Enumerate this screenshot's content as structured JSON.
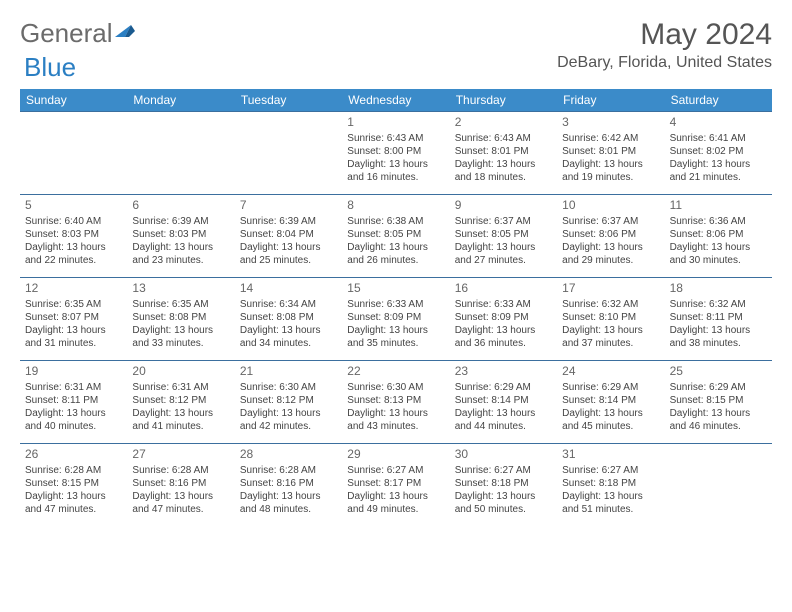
{
  "logo": {
    "part1": "General",
    "part2": "Blue"
  },
  "title": "May 2024",
  "location": "DeBary, Florida, United States",
  "header_bg": "#3b8bc9",
  "border_color": "#3b6f9e",
  "weekdays": [
    "Sunday",
    "Monday",
    "Tuesday",
    "Wednesday",
    "Thursday",
    "Friday",
    "Saturday"
  ],
  "weeks": [
    [
      {
        "n": "",
        "l1": "",
        "l2": "",
        "l3": "",
        "l4": ""
      },
      {
        "n": "",
        "l1": "",
        "l2": "",
        "l3": "",
        "l4": ""
      },
      {
        "n": "",
        "l1": "",
        "l2": "",
        "l3": "",
        "l4": ""
      },
      {
        "n": "1",
        "l1": "Sunrise: 6:43 AM",
        "l2": "Sunset: 8:00 PM",
        "l3": "Daylight: 13 hours",
        "l4": "and 16 minutes."
      },
      {
        "n": "2",
        "l1": "Sunrise: 6:43 AM",
        "l2": "Sunset: 8:01 PM",
        "l3": "Daylight: 13 hours",
        "l4": "and 18 minutes."
      },
      {
        "n": "3",
        "l1": "Sunrise: 6:42 AM",
        "l2": "Sunset: 8:01 PM",
        "l3": "Daylight: 13 hours",
        "l4": "and 19 minutes."
      },
      {
        "n": "4",
        "l1": "Sunrise: 6:41 AM",
        "l2": "Sunset: 8:02 PM",
        "l3": "Daylight: 13 hours",
        "l4": "and 21 minutes."
      }
    ],
    [
      {
        "n": "5",
        "l1": "Sunrise: 6:40 AM",
        "l2": "Sunset: 8:03 PM",
        "l3": "Daylight: 13 hours",
        "l4": "and 22 minutes."
      },
      {
        "n": "6",
        "l1": "Sunrise: 6:39 AM",
        "l2": "Sunset: 8:03 PM",
        "l3": "Daylight: 13 hours",
        "l4": "and 23 minutes."
      },
      {
        "n": "7",
        "l1": "Sunrise: 6:39 AM",
        "l2": "Sunset: 8:04 PM",
        "l3": "Daylight: 13 hours",
        "l4": "and 25 minutes."
      },
      {
        "n": "8",
        "l1": "Sunrise: 6:38 AM",
        "l2": "Sunset: 8:05 PM",
        "l3": "Daylight: 13 hours",
        "l4": "and 26 minutes."
      },
      {
        "n": "9",
        "l1": "Sunrise: 6:37 AM",
        "l2": "Sunset: 8:05 PM",
        "l3": "Daylight: 13 hours",
        "l4": "and 27 minutes."
      },
      {
        "n": "10",
        "l1": "Sunrise: 6:37 AM",
        "l2": "Sunset: 8:06 PM",
        "l3": "Daylight: 13 hours",
        "l4": "and 29 minutes."
      },
      {
        "n": "11",
        "l1": "Sunrise: 6:36 AM",
        "l2": "Sunset: 8:06 PM",
        "l3": "Daylight: 13 hours",
        "l4": "and 30 minutes."
      }
    ],
    [
      {
        "n": "12",
        "l1": "Sunrise: 6:35 AM",
        "l2": "Sunset: 8:07 PM",
        "l3": "Daylight: 13 hours",
        "l4": "and 31 minutes."
      },
      {
        "n": "13",
        "l1": "Sunrise: 6:35 AM",
        "l2": "Sunset: 8:08 PM",
        "l3": "Daylight: 13 hours",
        "l4": "and 33 minutes."
      },
      {
        "n": "14",
        "l1": "Sunrise: 6:34 AM",
        "l2": "Sunset: 8:08 PM",
        "l3": "Daylight: 13 hours",
        "l4": "and 34 minutes."
      },
      {
        "n": "15",
        "l1": "Sunrise: 6:33 AM",
        "l2": "Sunset: 8:09 PM",
        "l3": "Daylight: 13 hours",
        "l4": "and 35 minutes."
      },
      {
        "n": "16",
        "l1": "Sunrise: 6:33 AM",
        "l2": "Sunset: 8:09 PM",
        "l3": "Daylight: 13 hours",
        "l4": "and 36 minutes."
      },
      {
        "n": "17",
        "l1": "Sunrise: 6:32 AM",
        "l2": "Sunset: 8:10 PM",
        "l3": "Daylight: 13 hours",
        "l4": "and 37 minutes."
      },
      {
        "n": "18",
        "l1": "Sunrise: 6:32 AM",
        "l2": "Sunset: 8:11 PM",
        "l3": "Daylight: 13 hours",
        "l4": "and 38 minutes."
      }
    ],
    [
      {
        "n": "19",
        "l1": "Sunrise: 6:31 AM",
        "l2": "Sunset: 8:11 PM",
        "l3": "Daylight: 13 hours",
        "l4": "and 40 minutes."
      },
      {
        "n": "20",
        "l1": "Sunrise: 6:31 AM",
        "l2": "Sunset: 8:12 PM",
        "l3": "Daylight: 13 hours",
        "l4": "and 41 minutes."
      },
      {
        "n": "21",
        "l1": "Sunrise: 6:30 AM",
        "l2": "Sunset: 8:12 PM",
        "l3": "Daylight: 13 hours",
        "l4": "and 42 minutes."
      },
      {
        "n": "22",
        "l1": "Sunrise: 6:30 AM",
        "l2": "Sunset: 8:13 PM",
        "l3": "Daylight: 13 hours",
        "l4": "and 43 minutes."
      },
      {
        "n": "23",
        "l1": "Sunrise: 6:29 AM",
        "l2": "Sunset: 8:14 PM",
        "l3": "Daylight: 13 hours",
        "l4": "and 44 minutes."
      },
      {
        "n": "24",
        "l1": "Sunrise: 6:29 AM",
        "l2": "Sunset: 8:14 PM",
        "l3": "Daylight: 13 hours",
        "l4": "and 45 minutes."
      },
      {
        "n": "25",
        "l1": "Sunrise: 6:29 AM",
        "l2": "Sunset: 8:15 PM",
        "l3": "Daylight: 13 hours",
        "l4": "and 46 minutes."
      }
    ],
    [
      {
        "n": "26",
        "l1": "Sunrise: 6:28 AM",
        "l2": "Sunset: 8:15 PM",
        "l3": "Daylight: 13 hours",
        "l4": "and 47 minutes."
      },
      {
        "n": "27",
        "l1": "Sunrise: 6:28 AM",
        "l2": "Sunset: 8:16 PM",
        "l3": "Daylight: 13 hours",
        "l4": "and 47 minutes."
      },
      {
        "n": "28",
        "l1": "Sunrise: 6:28 AM",
        "l2": "Sunset: 8:16 PM",
        "l3": "Daylight: 13 hours",
        "l4": "and 48 minutes."
      },
      {
        "n": "29",
        "l1": "Sunrise: 6:27 AM",
        "l2": "Sunset: 8:17 PM",
        "l3": "Daylight: 13 hours",
        "l4": "and 49 minutes."
      },
      {
        "n": "30",
        "l1": "Sunrise: 6:27 AM",
        "l2": "Sunset: 8:18 PM",
        "l3": "Daylight: 13 hours",
        "l4": "and 50 minutes."
      },
      {
        "n": "31",
        "l1": "Sunrise: 6:27 AM",
        "l2": "Sunset: 8:18 PM",
        "l3": "Daylight: 13 hours",
        "l4": "and 51 minutes."
      },
      {
        "n": "",
        "l1": "",
        "l2": "",
        "l3": "",
        "l4": ""
      }
    ]
  ]
}
